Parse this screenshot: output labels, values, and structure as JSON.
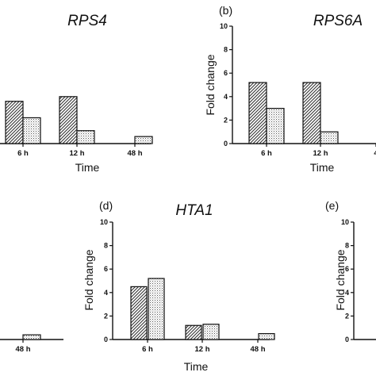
{
  "chart_data": [
    {
      "panel": "",
      "type": "bar",
      "title": "RPS4",
      "xlabel": "Time",
      "ylabel": "",
      "ylim": [
        0,
        10
      ],
      "categories": [
        "",
        "6 h",
        "12 h",
        "48 h"
      ],
      "series": [
        {
          "values": [
            null,
            3.6,
            4.0,
            null
          ],
          "pattern": "diagonal-hatch"
        },
        {
          "values": [
            null,
            2.2,
            1.1,
            0.6
          ],
          "pattern": "dotted"
        }
      ]
    },
    {
      "panel": "(b)",
      "type": "bar",
      "title": "RPS6A",
      "xlabel": "Time",
      "ylabel": "Fold change",
      "ylim": [
        0,
        10
      ],
      "yticks": [
        "0",
        "2",
        "4",
        "6",
        "8",
        "10"
      ],
      "categories": [
        "6 h",
        "12 h",
        "4"
      ],
      "series": [
        {
          "values": [
            5.2,
            5.2,
            null
          ],
          "pattern": "diagonal-hatch"
        },
        {
          "values": [
            3.0,
            1.0,
            null
          ],
          "pattern": "dotted"
        }
      ]
    },
    {
      "panel": "",
      "type": "bar",
      "title": "",
      "xlabel": "",
      "ylabel": "",
      "ylim": [
        0,
        10
      ],
      "categories": [
        "48 h"
      ],
      "series": [
        {
          "values": [
            null
          ],
          "pattern": "diagonal-hatch"
        },
        {
          "values": [
            0.4
          ],
          "pattern": "dotted"
        }
      ]
    },
    {
      "panel": "(d)",
      "type": "bar",
      "title": "HTA1",
      "xlabel": "Time",
      "ylabel": "Fold change",
      "ylim": [
        0,
        10
      ],
      "yticks": [
        "0",
        "2",
        "4",
        "6",
        "8",
        "10"
      ],
      "categories": [
        "6 h",
        "12 h",
        "48 h"
      ],
      "series": [
        {
          "values": [
            4.5,
            1.2,
            null
          ],
          "pattern": "diagonal-hatch"
        },
        {
          "values": [
            5.2,
            1.3,
            0.5
          ],
          "pattern": "dotted"
        }
      ]
    },
    {
      "panel": "(e)",
      "type": "bar",
      "title": "",
      "xlabel": "",
      "ylabel": "Fold change",
      "ylim": [
        0,
        10
      ],
      "yticks": [
        "0",
        "2",
        "4",
        "6",
        "8",
        "10"
      ],
      "categories": [],
      "series": []
    }
  ]
}
